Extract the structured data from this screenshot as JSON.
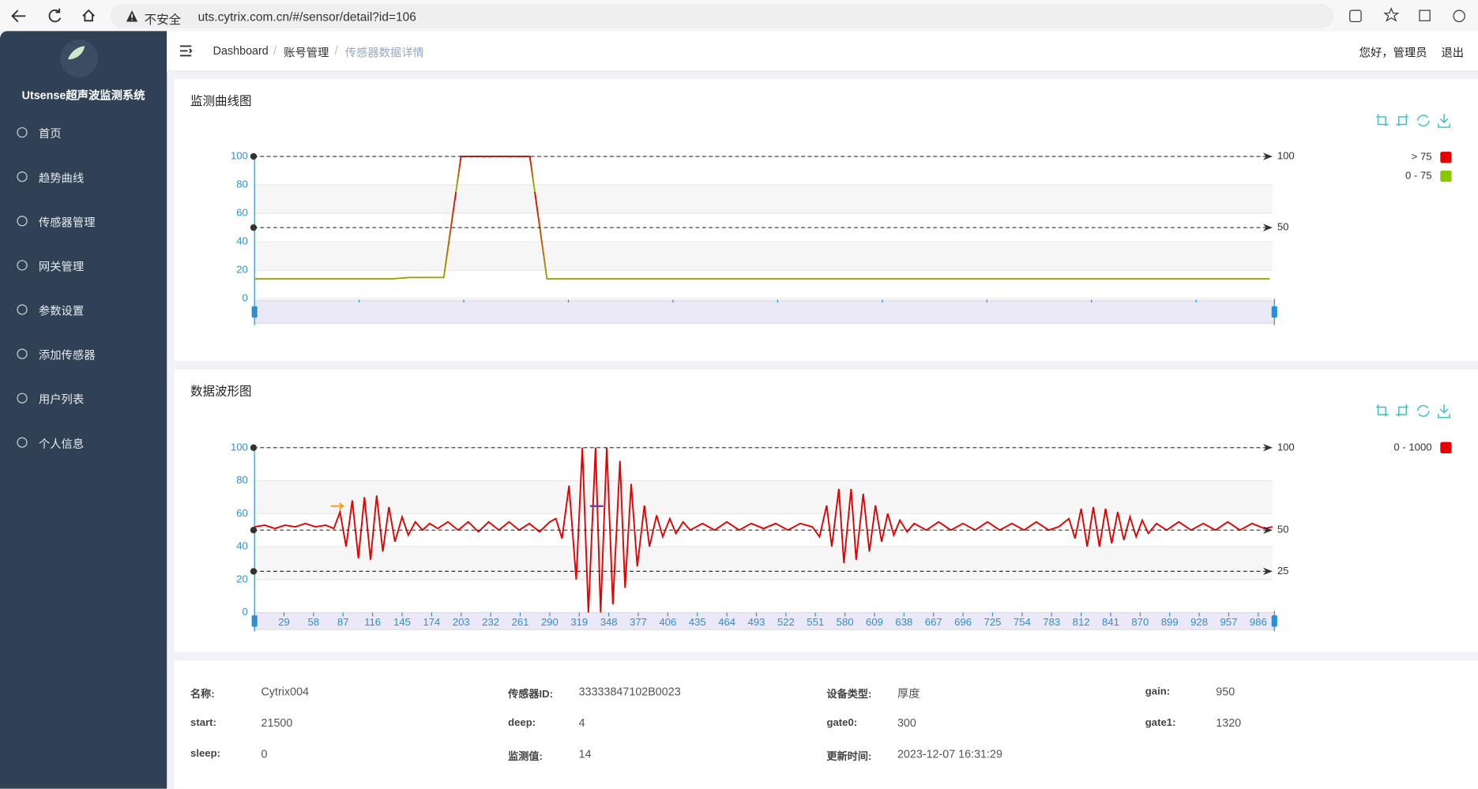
{
  "browser": {
    "security": "不安全",
    "url": "uts.cytrix.com.cn/#/sensor/detail?id=106"
  },
  "sidebar": {
    "title": "Utsense超声波监测系统",
    "menu": [
      "首页",
      "趋势曲线",
      "传感器管理",
      "网关管理",
      "参数设置",
      "添加传感器",
      "用户列表",
      "个人信息"
    ]
  },
  "header": {
    "breadcrumb": [
      "Dashboard",
      "账号管理",
      "传感器数据详情"
    ],
    "greeting": "您好，管理员",
    "logout": "退出"
  },
  "chart_data": [
    {
      "type": "line",
      "title": "监测曲线图",
      "ylim": [
        0,
        100
      ],
      "yticks": [
        0,
        20,
        40,
        60,
        80,
        100
      ],
      "grid": true,
      "values": [
        14,
        14,
        14,
        14,
        14,
        14,
        14,
        14,
        14,
        15,
        15,
        15,
        100,
        100,
        100,
        100,
        100,
        14,
        14,
        14,
        14,
        14,
        14,
        14,
        14,
        14,
        14,
        14,
        14,
        14,
        14,
        14,
        14,
        14,
        14,
        14,
        14,
        14,
        14,
        14,
        14,
        14,
        14,
        14,
        14,
        14,
        14,
        14,
        14,
        14,
        14,
        14,
        14,
        14,
        14,
        14,
        14,
        14,
        14,
        14
      ],
      "mark_lines": [
        100,
        50
      ],
      "visual_map": [
        {
          "label": "> 75",
          "min": 75,
          "color": "#e60000"
        },
        {
          "label": "0 - 75",
          "min": 0,
          "max": 75,
          "color": "#8cc800"
        }
      ]
    },
    {
      "type": "line",
      "title": "数据波形图",
      "xlim": [
        0,
        1000
      ],
      "xticks": [
        29,
        58,
        87,
        116,
        145,
        174,
        203,
        232,
        261,
        290,
        319,
        348,
        377,
        406,
        435,
        464,
        493,
        522,
        551,
        580,
        609,
        638,
        667,
        696,
        725,
        754,
        783,
        812,
        841,
        870,
        899,
        928,
        957,
        986
      ],
      "ylim": [
        0,
        100
      ],
      "yticks": [
        0,
        20,
        40,
        60,
        80,
        100
      ],
      "grid": true,
      "x": [
        0,
        10,
        20,
        30,
        40,
        50,
        60,
        70,
        78,
        84,
        90,
        96,
        102,
        108,
        114,
        120,
        126,
        132,
        138,
        145,
        151,
        158,
        165,
        172,
        180,
        190,
        200,
        210,
        220,
        230,
        240,
        250,
        260,
        270,
        280,
        290,
        296,
        302,
        309,
        316,
        322,
        328,
        335,
        340,
        346,
        352,
        359,
        364,
        370,
        376,
        383,
        388,
        395,
        401,
        408,
        414,
        421,
        428,
        440,
        452,
        464,
        476,
        488,
        500,
        512,
        524,
        536,
        548,
        555,
        562,
        567,
        574,
        579,
        586,
        591,
        598,
        604,
        610,
        616,
        622,
        628,
        634,
        641,
        648,
        660,
        672,
        684,
        696,
        708,
        720,
        732,
        744,
        756,
        768,
        780,
        790,
        800,
        806,
        812,
        818,
        824,
        830,
        836,
        842,
        848,
        854,
        860,
        866,
        872,
        878,
        886,
        896,
        908,
        920,
        932,
        944,
        956,
        968,
        980,
        992,
        1000
      ],
      "values": [
        52,
        53,
        51,
        53,
        52,
        54,
        52,
        53,
        51,
        61,
        40,
        68,
        33,
        70,
        32,
        71,
        37,
        64,
        43,
        58,
        47,
        55,
        50,
        54,
        51,
        55,
        50,
        55,
        49,
        55,
        50,
        55,
        50,
        54,
        49,
        55,
        57,
        45,
        77,
        20,
        100,
        0,
        100,
        0,
        100,
        5,
        92,
        15,
        78,
        28,
        65,
        40,
        59,
        46,
        57,
        48,
        55,
        50,
        54,
        50,
        55,
        50,
        54,
        51,
        54,
        50,
        54,
        52,
        46,
        65,
        40,
        75,
        30,
        75,
        32,
        72,
        37,
        65,
        43,
        60,
        47,
        56,
        49,
        54,
        50,
        55,
        50,
        54,
        50,
        55,
        50,
        54,
        50,
        55,
        50,
        52,
        57,
        45,
        63,
        40,
        64,
        40,
        63,
        42,
        61,
        44,
        58,
        46,
        56,
        48,
        54,
        50,
        55,
        50,
        54,
        50,
        55,
        50,
        54,
        51,
        52
      ],
      "mark_lines": [
        100,
        50,
        25
      ],
      "visual_map": [
        {
          "label": "0 - 1000",
          "min": 0,
          "max": 1000,
          "color": "#e60000"
        }
      ]
    }
  ],
  "info": [
    [
      {
        "label": "名称:",
        "value": "Cytrix004"
      },
      {
        "label": "传感器ID:",
        "value": "33333847102B0023"
      },
      {
        "label": "设备类型:",
        "value": "厚度"
      },
      {
        "label": "gain:",
        "value": 950
      }
    ],
    [
      {
        "label": "start:",
        "value": 21500
      },
      {
        "label": "deep:",
        "value": 4
      },
      {
        "label": "gate0:",
        "value": 300
      },
      {
        "label": "gate1:",
        "value": 1320
      }
    ],
    [
      {
        "label": "sleep:",
        "value": 0
      },
      {
        "label": "监测值:",
        "value": 14
      },
      {
        "label": "更新时间:",
        "value": "2023-12-07 16:31:29"
      }
    ]
  ]
}
